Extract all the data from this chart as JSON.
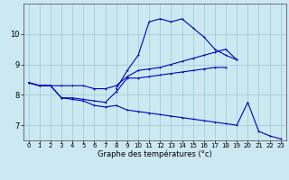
{
  "xlabel": "Graphe des températures (°c)",
  "background_color": "#cce8f0",
  "grid_color": "#99ccd8",
  "line_color": "#0000bb",
  "hours": [
    0,
    1,
    2,
    3,
    4,
    5,
    6,
    7,
    8,
    9,
    10,
    11,
    12,
    13,
    14,
    15,
    16,
    17,
    18,
    19,
    20,
    21,
    22,
    23
  ],
  "curve_peak": [
    8.4,
    8.3,
    8.3,
    null,
    null,
    null,
    null,
    null,
    8.2,
    8.8,
    9.3,
    10.4,
    10.5,
    10.4,
    10.5,
    10.2,
    9.9,
    9.5,
    9.3,
    9.15,
    null,
    null,
    null,
    null
  ],
  "curve_mid_high": [
    8.4,
    8.3,
    8.3,
    8.3,
    8.3,
    8.3,
    8.2,
    8.2,
    8.3,
    8.6,
    8.8,
    8.85,
    8.9,
    9.0,
    9.1,
    9.2,
    9.3,
    9.4,
    9.5,
    9.15,
    null,
    null,
    null,
    null
  ],
  "curve_mid_low": [
    8.4,
    8.3,
    8.3,
    7.9,
    7.9,
    7.85,
    7.8,
    7.75,
    8.1,
    8.55,
    8.55,
    8.6,
    8.65,
    8.7,
    8.75,
    8.8,
    8.85,
    8.9,
    8.9,
    null,
    null,
    null,
    null,
    null
  ],
  "curve_low": [
    8.4,
    8.3,
    8.3,
    7.9,
    7.85,
    7.8,
    7.65,
    7.6,
    7.65,
    7.5,
    7.45,
    7.4,
    7.35,
    7.3,
    7.25,
    7.2,
    7.15,
    7.1,
    7.05,
    7.0,
    7.75,
    6.8,
    6.65,
    6.55
  ],
  "xlim": [
    0,
    23
  ],
  "ylim": [
    6.5,
    11.0
  ],
  "yticks": [
    7,
    8,
    9,
    10
  ],
  "xticks": [
    0,
    1,
    2,
    3,
    4,
    5,
    6,
    7,
    8,
    9,
    10,
    11,
    12,
    13,
    14,
    15,
    16,
    17,
    18,
    19,
    20,
    21,
    22,
    23
  ]
}
